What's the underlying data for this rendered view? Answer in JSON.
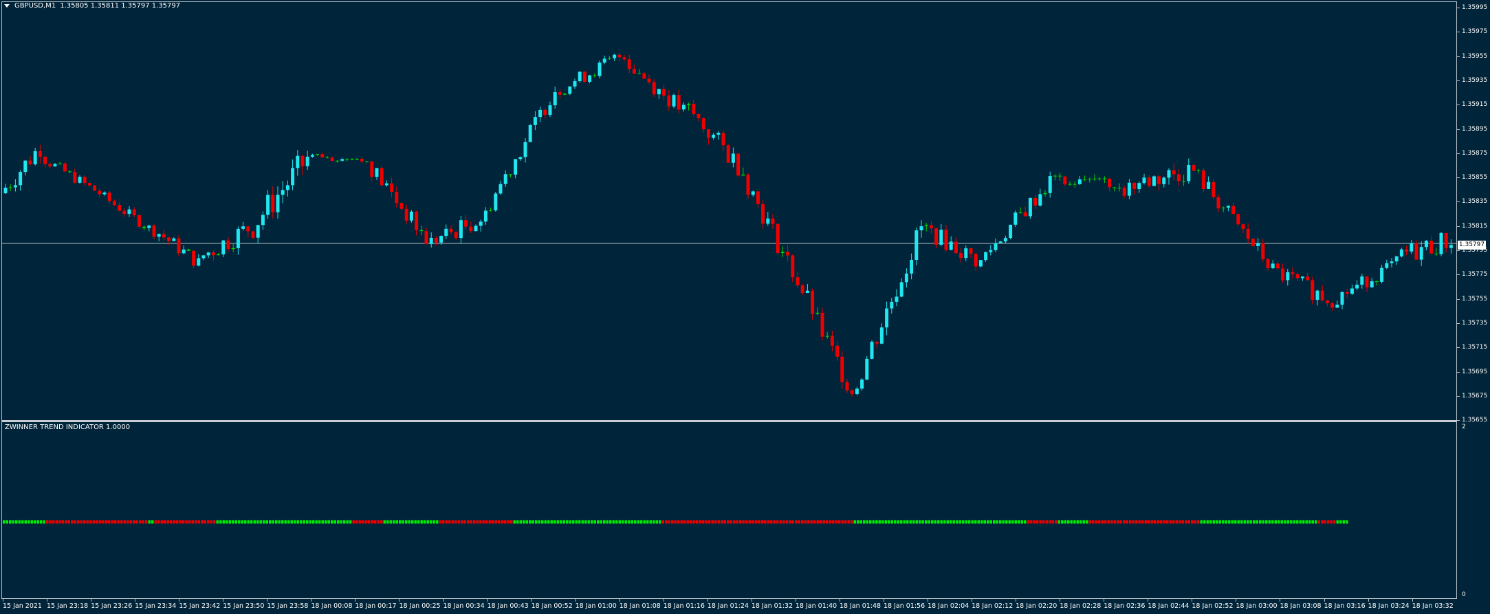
{
  "chart": {
    "symbol_label": "GBPUSD,M1",
    "ohlc_label": "1.35805 1.35811 1.35797 1.35797",
    "bid_label": "1.35797",
    "colors": {
      "background": "#002439",
      "bull": "#22e6f0",
      "bear": "#ee0000",
      "doji": "#00d600",
      "bid_line": "#b6bec4",
      "text": "#ffffff"
    }
  },
  "indicator": {
    "title": "ZWINNER TREND INDICATOR 1.0000",
    "scale_max": "2",
    "scale_min": "0",
    "colors": {
      "up": "#00ee00",
      "down": "#ee0000"
    }
  },
  "price_axis": {
    "labels": [
      "1.35995",
      "1.35975",
      "1.35955",
      "1.35935",
      "1.35915",
      "1.35895",
      "1.35875",
      "1.35855",
      "1.35835",
      "1.35815",
      "1.35795",
      "1.35775",
      "1.35755",
      "1.35735",
      "1.35715",
      "1.35695",
      "1.35675",
      "1.35655"
    ]
  },
  "time_axis": {
    "labels": [
      "15 Jan 2021",
      "15 Jan 23:18",
      "15 Jan 23:26",
      "15 Jan 23:34",
      "15 Jan 23:42",
      "15 Jan 23:50",
      "15 Jan 23:58",
      "18 Jan 00:08",
      "18 Jan 00:17",
      "18 Jan 00:25",
      "18 Jan 00:34",
      "18 Jan 00:43",
      "18 Jan 00:52",
      "18 Jan 01:00",
      "18 Jan 01:08",
      "18 Jan 01:16",
      "18 Jan 01:24",
      "18 Jan 01:32",
      "18 Jan 01:40",
      "18 Jan 01:48",
      "18 Jan 01:56",
      "18 Jan 02:04",
      "18 Jan 02:12",
      "18 Jan 02:20",
      "18 Jan 02:28",
      "18 Jan 02:36",
      "18 Jan 02:44",
      "18 Jan 02:52",
      "18 Jan 03:00",
      "18 Jan 03:08",
      "18 Jan 03:16",
      "18 Jan 03:24",
      "18 Jan 03:32"
    ]
  },
  "chart_data": {
    "type": "candlestick",
    "symbol": "GBPUSD",
    "timeframe": "M1",
    "ylim": [
      1.3565,
      1.36
    ],
    "bid": 1.35797,
    "segments": [
      {
        "from": 0,
        "to": 8,
        "close": 1.3588,
        "dir": 1,
        "amp": 0.00012
      },
      {
        "from": 8,
        "to": 20,
        "close": 1.3584,
        "dir": -1,
        "amp": 6e-05
      },
      {
        "from": 20,
        "to": 30,
        "close": 1.3581,
        "dir": -1,
        "amp": 6e-05
      },
      {
        "from": 30,
        "to": 40,
        "close": 1.3578,
        "dir": -1,
        "amp": 8e-05
      },
      {
        "from": 40,
        "to": 50,
        "close": 1.3581,
        "dir": 1,
        "amp": 0.00012
      },
      {
        "from": 50,
        "to": 62,
        "close": 1.3587,
        "dir": 1,
        "amp": 0.00016
      },
      {
        "from": 62,
        "to": 74,
        "close": 1.3587,
        "dir": 0,
        "amp": 4e-05
      },
      {
        "from": 74,
        "to": 86,
        "close": 1.358,
        "dir": -1,
        "amp": 0.0001
      },
      {
        "from": 86,
        "to": 98,
        "close": 1.3582,
        "dir": 1,
        "amp": 0.0001
      },
      {
        "from": 98,
        "to": 112,
        "close": 1.3593,
        "dir": 1,
        "amp": 0.0001
      },
      {
        "from": 112,
        "to": 126,
        "close": 1.3596,
        "dir": 1,
        "amp": 8e-05
      },
      {
        "from": 126,
        "to": 138,
        "close": 1.3591,
        "dir": -1,
        "amp": 0.0001
      },
      {
        "from": 138,
        "to": 150,
        "close": 1.3586,
        "dir": -1,
        "amp": 0.00012
      },
      {
        "from": 150,
        "to": 164,
        "close": 1.3574,
        "dir": -1,
        "amp": 0.00012
      },
      {
        "from": 164,
        "to": 172,
        "close": 1.3567,
        "dir": -1,
        "amp": 0.00012
      },
      {
        "from": 172,
        "to": 186,
        "close": 1.3581,
        "dir": 1,
        "amp": 0.00014
      },
      {
        "from": 186,
        "to": 198,
        "close": 1.3578,
        "dir": -1,
        "amp": 0.0001
      },
      {
        "from": 198,
        "to": 212,
        "close": 1.3585,
        "dir": 1,
        "amp": 0.0001
      },
      {
        "from": 212,
        "to": 226,
        "close": 1.3584,
        "dir": 0,
        "amp": 8e-05
      },
      {
        "from": 226,
        "to": 240,
        "close": 1.3586,
        "dir": 1,
        "amp": 0.00012
      },
      {
        "from": 240,
        "to": 256,
        "close": 1.3578,
        "dir": -1,
        "amp": 0.0001
      },
      {
        "from": 256,
        "to": 268,
        "close": 1.3575,
        "dir": -1,
        "amp": 0.0001
      },
      {
        "from": 268,
        "to": 282,
        "close": 1.3578,
        "dir": 1,
        "amp": 8e-05
      },
      {
        "from": 282,
        "to": 293,
        "close": 1.358,
        "dir": 1,
        "amp": 0.00012
      }
    ],
    "indicator_runs": [
      {
        "signal": "up",
        "bars": 14
      },
      {
        "signal": "down",
        "bars": 33
      },
      {
        "signal": "up",
        "bars": 2
      },
      {
        "signal": "down",
        "bars": 20
      },
      {
        "signal": "up",
        "bars": 44
      },
      {
        "signal": "down",
        "bars": 10
      },
      {
        "signal": "up",
        "bars": 18
      },
      {
        "signal": "down",
        "bars": 24
      },
      {
        "signal": "up",
        "bars": 48
      },
      {
        "signal": "down",
        "bars": 62
      },
      {
        "signal": "up",
        "bars": 56
      },
      {
        "signal": "down",
        "bars": 10
      },
      {
        "signal": "up",
        "bars": 10
      },
      {
        "signal": "down",
        "bars": 36
      },
      {
        "signal": "up",
        "bars": 38
      },
      {
        "signal": "down",
        "bars": 6
      },
      {
        "signal": "up",
        "bars": 4
      }
    ]
  }
}
